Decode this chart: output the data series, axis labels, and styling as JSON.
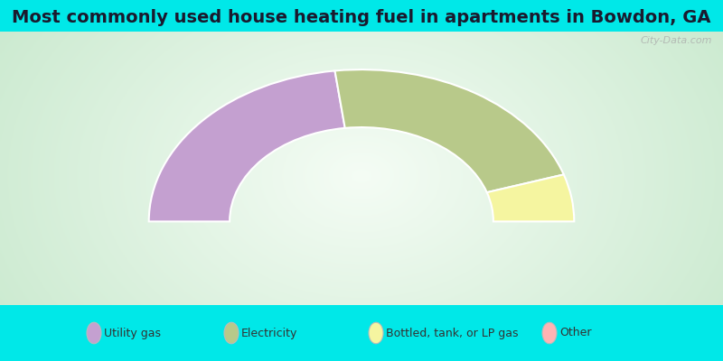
{
  "title": "Most commonly used house heating fuel in apartments in Bowdon, GA",
  "segments": [
    {
      "label": "Utility gas",
      "value": 46,
      "color": "#c4a0d0"
    },
    {
      "label": "Electricity",
      "value": 44,
      "color": "#b8c98a"
    },
    {
      "label": "Bottled, tank, or LP gas",
      "value": 10,
      "color": "#f5f5a0"
    },
    {
      "label": "Other",
      "value": 0,
      "color": "#ffb3b3"
    }
  ],
  "cyan_color": "#00e8e8",
  "chart_bg_center": "#f5faf5",
  "chart_bg_edge": "#c8e8cc",
  "title_fontsize": 14,
  "title_color": "#1a1a2e",
  "watermark": "City-Data.com",
  "legend_text_color": "#333333",
  "top_bar_height": 0.0875,
  "bottom_bar_height": 0.155
}
